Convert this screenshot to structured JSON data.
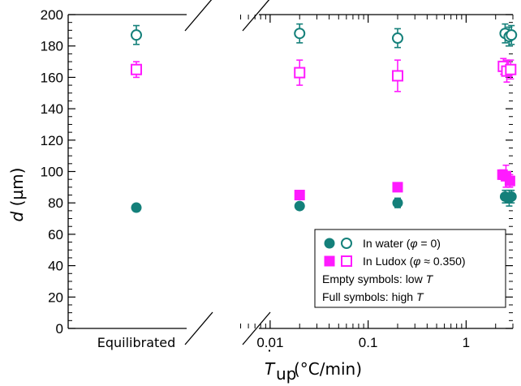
{
  "chart_data": {
    "type": "scatter",
    "ylabel_italic": "d",
    "ylabel_rest": " (µm)",
    "xlabel_main": "T",
    "xlabel_dot": "˙",
    "xlabel_sub": "up",
    "xlabel_rest": " (°C/min)",
    "left_category": "Equilibrated",
    "ylim": [
      0,
      200
    ],
    "y_ticks": [
      0,
      20,
      40,
      60,
      80,
      100,
      120,
      140,
      160,
      180,
      200
    ],
    "x_scale": "log",
    "xlim": [
      0.0045,
      3.0
    ],
    "x_ticks": [
      {
        "value": 0.01,
        "label": "0.01"
      },
      {
        "value": 0.1,
        "label": "0.1"
      },
      {
        "value": 1,
        "label": "1"
      }
    ],
    "colors": {
      "water": "#14807a",
      "ludox": "#ff1aff"
    },
    "series": [
      {
        "name": "In water (φ = 0), low T",
        "marker": "circle-open",
        "color": "#14807a",
        "equilibrated": {
          "y": 187,
          "err": 6
        },
        "points": [
          {
            "x": 0.02,
            "y": 188,
            "err": 6
          },
          {
            "x": 0.2,
            "y": 185,
            "err": 6
          },
          {
            "x": 2.5,
            "y": 188,
            "err": 6
          },
          {
            "x": 2.75,
            "y": 186,
            "err": 6
          },
          {
            "x": 2.9,
            "y": 187,
            "err": 6
          }
        ]
      },
      {
        "name": "In Ludox (φ ≈ 0.350), low T",
        "marker": "square-open",
        "color": "#ff1aff",
        "equilibrated": {
          "y": 165,
          "err": 5
        },
        "points": [
          {
            "x": 0.02,
            "y": 163,
            "err": 8
          },
          {
            "x": 0.2,
            "y": 161,
            "err": 10
          },
          {
            "x": 2.4,
            "y": 167,
            "err": 5
          },
          {
            "x": 2.6,
            "y": 164,
            "err": 7
          },
          {
            "x": 2.85,
            "y": 165,
            "err": 6
          }
        ]
      },
      {
        "name": "In water (φ = 0), high T",
        "marker": "circle-filled",
        "color": "#14807a",
        "equilibrated": {
          "y": 77,
          "err": 0
        },
        "points": [
          {
            "x": 0.02,
            "y": 78,
            "err": 2
          },
          {
            "x": 0.2,
            "y": 80,
            "err": 3
          },
          {
            "x": 2.5,
            "y": 84,
            "err": 4
          },
          {
            "x": 2.75,
            "y": 83,
            "err": 5
          },
          {
            "x": 2.9,
            "y": 84,
            "err": 4
          }
        ]
      },
      {
        "name": "In Ludox (φ ≈ 0.350), high T",
        "marker": "square-filled",
        "color": "#ff1aff",
        "equilibrated": null,
        "points": [
          {
            "x": 0.02,
            "y": 85,
            "err": 2
          },
          {
            "x": 0.2,
            "y": 90,
            "err": 2
          },
          {
            "x": 2.35,
            "y": 98,
            "err": 3
          },
          {
            "x": 2.55,
            "y": 97,
            "err": 7
          },
          {
            "x": 2.8,
            "y": 94,
            "err": 4
          }
        ]
      }
    ],
    "legend": {
      "placement": "lower-right",
      "entries": [
        {
          "label_pre": "In water (",
          "symbol": "φ",
          "label_post": " = 0)",
          "color": "#14807a",
          "shape": "circle"
        },
        {
          "label_pre": "In Ludox (",
          "symbol": "φ",
          "label_post": " ≈ 0.350)",
          "color": "#ff1aff",
          "shape": "square"
        }
      ],
      "note_empty_pre": "Empty symbols: low ",
      "note_full_pre": "Full symbols: high ",
      "note_var": "T"
    }
  }
}
